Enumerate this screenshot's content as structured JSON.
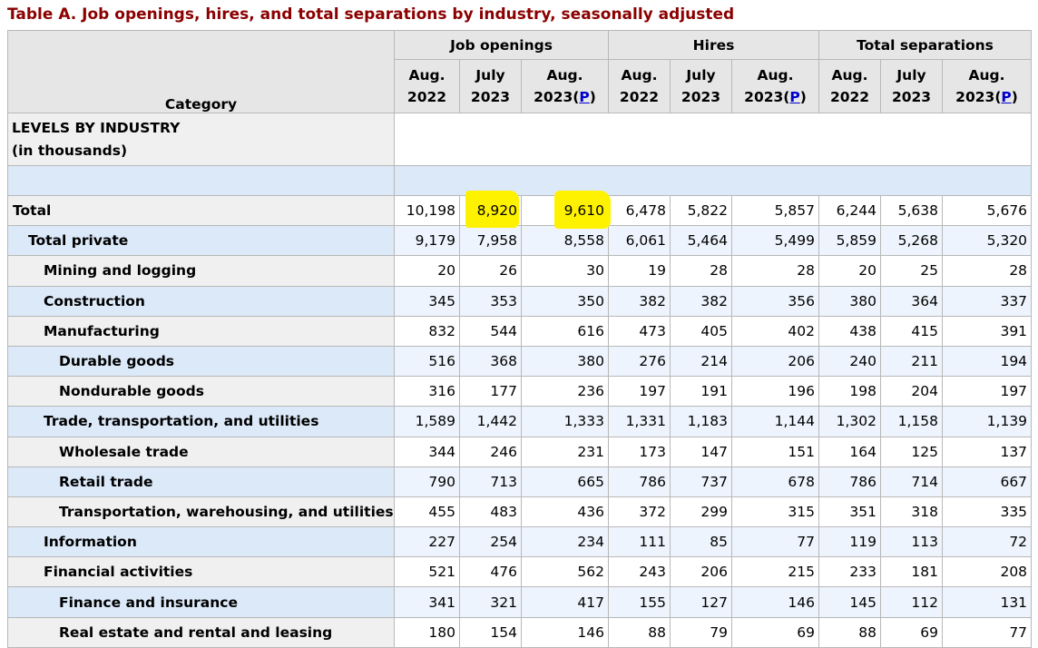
{
  "title": "Table A. Job openings, hires, and total separations by industry, seasonally adjusted",
  "header": {
    "category": "Category",
    "groups": [
      "Job openings",
      "Hires",
      "Total separations"
    ],
    "periods": [
      {
        "month": "Aug.",
        "year": "2022",
        "prelim": ""
      },
      {
        "month": "July",
        "year": "2023",
        "prelim": ""
      },
      {
        "month": "Aug.",
        "year": "2023",
        "prelim": "P"
      }
    ]
  },
  "section": {
    "line1": "LEVELS BY INDUSTRY",
    "line2": "(in thousands)"
  },
  "highlight_color": "#fff200",
  "rows": [
    {
      "label": "Total",
      "level": 0,
      "values": [
        "10,198",
        "8,920",
        "9,610",
        "6,478",
        "5,822",
        "5,857",
        "6,244",
        "5,638",
        "5,676"
      ],
      "highlighted": [
        1,
        2
      ]
    },
    {
      "label": "Total private",
      "level": 1,
      "values": [
        "9,179",
        "7,958",
        "8,558",
        "6,061",
        "5,464",
        "5,499",
        "5,859",
        "5,268",
        "5,320"
      ]
    },
    {
      "label": "Mining and logging",
      "level": 2,
      "values": [
        "20",
        "26",
        "30",
        "19",
        "28",
        "28",
        "20",
        "25",
        "28"
      ]
    },
    {
      "label": "Construction",
      "level": 2,
      "values": [
        "345",
        "353",
        "350",
        "382",
        "382",
        "356",
        "380",
        "364",
        "337"
      ]
    },
    {
      "label": "Manufacturing",
      "level": 2,
      "values": [
        "832",
        "544",
        "616",
        "473",
        "405",
        "402",
        "438",
        "415",
        "391"
      ]
    },
    {
      "label": "Durable goods",
      "level": 3,
      "values": [
        "516",
        "368",
        "380",
        "276",
        "214",
        "206",
        "240",
        "211",
        "194"
      ]
    },
    {
      "label": "Nondurable goods",
      "level": 3,
      "values": [
        "316",
        "177",
        "236",
        "197",
        "191",
        "196",
        "198",
        "204",
        "197"
      ]
    },
    {
      "label": "Trade, transportation, and utilities",
      "level": 2,
      "values": [
        "1,589",
        "1,442",
        "1,333",
        "1,331",
        "1,183",
        "1,144",
        "1,302",
        "1,158",
        "1,139"
      ]
    },
    {
      "label": "Wholesale trade",
      "level": 3,
      "values": [
        "344",
        "246",
        "231",
        "173",
        "147",
        "151",
        "164",
        "125",
        "137"
      ]
    },
    {
      "label": "Retail trade",
      "level": 3,
      "values": [
        "790",
        "713",
        "665",
        "786",
        "737",
        "678",
        "786",
        "714",
        "667"
      ]
    },
    {
      "label": "Transportation, warehousing, and utilities",
      "level": 3,
      "values": [
        "455",
        "483",
        "436",
        "372",
        "299",
        "315",
        "351",
        "318",
        "335"
      ]
    },
    {
      "label": "Information",
      "level": 2,
      "values": [
        "227",
        "254",
        "234",
        "111",
        "85",
        "77",
        "119",
        "113",
        "72"
      ]
    },
    {
      "label": "Financial activities",
      "level": 2,
      "values": [
        "521",
        "476",
        "562",
        "243",
        "206",
        "215",
        "233",
        "181",
        "208"
      ]
    },
    {
      "label": "Finance and insurance",
      "level": 3,
      "values": [
        "341",
        "321",
        "417",
        "155",
        "127",
        "146",
        "145",
        "112",
        "131"
      ]
    },
    {
      "label": "Real estate and rental and leasing",
      "level": 3,
      "values": [
        "180",
        "154",
        "146",
        "88",
        "79",
        "69",
        "88",
        "69",
        "77"
      ]
    }
  ]
}
